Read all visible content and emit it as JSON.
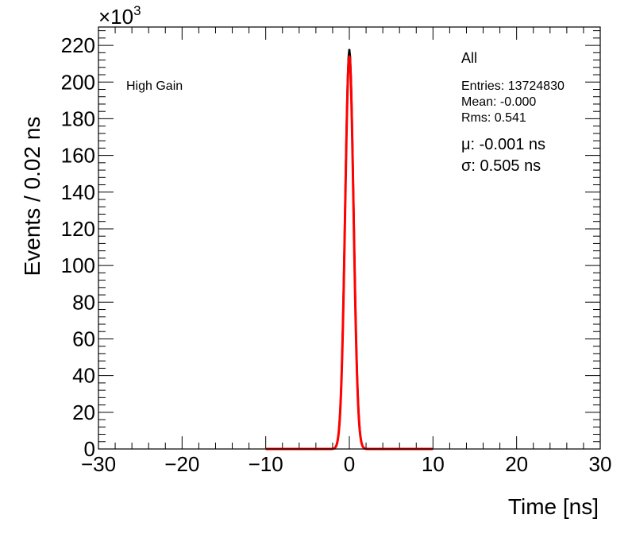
{
  "chart_data": {
    "type": "line",
    "xlabel": "Time [ns]",
    "ylabel": "Events / 0.02 ns",
    "xlim": [
      -30,
      30
    ],
    "ylim": [
      0,
      230000
    ],
    "x_ticks": [
      -30,
      -20,
      -10,
      0,
      10,
      20,
      30
    ],
    "y_ticks": [
      0,
      20000,
      40000,
      60000,
      80000,
      100000,
      120000,
      140000,
      160000,
      180000,
      200000,
      220000
    ],
    "y_tick_labels": [
      "0",
      "20",
      "40",
      "60",
      "80",
      "100",
      "120",
      "140",
      "160",
      "180",
      "200",
      "220"
    ],
    "y_exponent_base": "×10",
    "y_exponent_power": "3",
    "grid": false,
    "series": [
      {
        "kind": "histogram",
        "color": "#000000",
        "peak_x": 0,
        "peak_y": 218000,
        "sigma": 0.505
      },
      {
        "kind": "gaussian fit",
        "color": "#ff0000",
        "mu": -0.001,
        "sigma": 0.505,
        "amplitude": 214000,
        "x_range": [
          -10,
          10
        ]
      }
    ],
    "annotations": {
      "label": "High Gain",
      "stats": {
        "title": "All",
        "entries": "Entries: 13724830",
        "mean": "Mean: -0.000",
        "rms": "Rms: 0.541"
      },
      "fit": {
        "mu": "μ: -0.001 ns",
        "sigma": "σ: 0.505 ns"
      }
    }
  }
}
